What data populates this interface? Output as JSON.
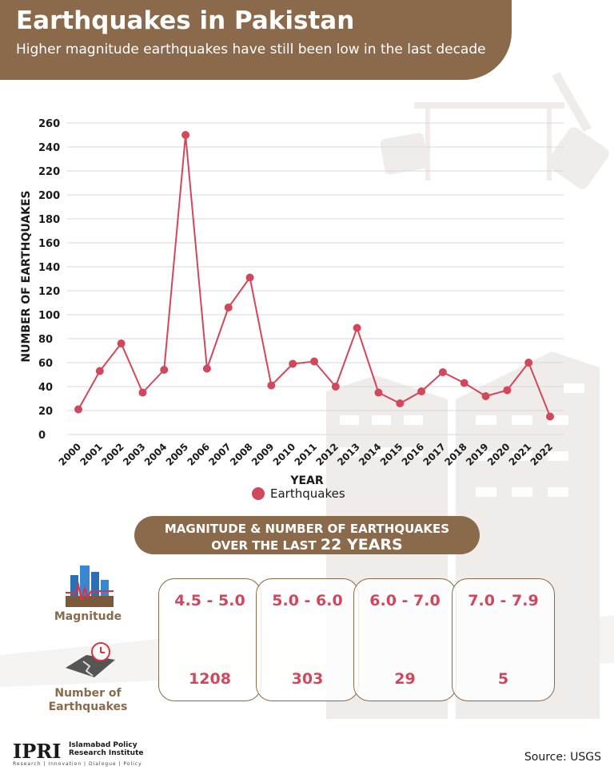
{
  "header": {
    "title": "Earthquakes in Pakistan",
    "subtitle": "Higher magnitude earthquakes have still been low in the last decade"
  },
  "colors": {
    "accent": "#8a6a4a",
    "series": "#d3475c",
    "grid": "#d9d9d9"
  },
  "chart_data": {
    "type": "line",
    "xlabel": "YEAR",
    "ylabel": "NUMBER OF EARTHQUAKES",
    "ylim": [
      0,
      260
    ],
    "yticks": [
      0,
      20,
      40,
      60,
      80,
      100,
      120,
      140,
      160,
      180,
      200,
      220,
      240,
      260
    ],
    "grid": true,
    "legend_position": "bottom",
    "categories": [
      "2000",
      "2001",
      "2002",
      "2003",
      "2004",
      "2005",
      "2006",
      "2007",
      "2008",
      "2009",
      "2010",
      "2011",
      "2012",
      "2013",
      "2014",
      "2015",
      "2016",
      "2017",
      "2018",
      "2019",
      "2020",
      "2021",
      "2022"
    ],
    "series": [
      {
        "name": "Earthquakes",
        "values": [
          21,
          53,
          76,
          35,
          54,
          250,
          55,
          106,
          131,
          41,
          59,
          61,
          40,
          89,
          35,
          26,
          36,
          52,
          43,
          32,
          37,
          60,
          15
        ]
      }
    ]
  },
  "summary": {
    "title_line1": "MAGNITUDE & NUMBER OF EARTHQUAKES",
    "title_line2_prefix": "OVER THE LAST ",
    "title_line2_big": "22 YEARS",
    "magnitude_label": "Magnitude",
    "count_label_line1": "Number of",
    "count_label_line2": "Earthquakes",
    "magnitude_icon": "city-seismograph-icon",
    "count_icon": "cracked-road-icon",
    "cards": [
      {
        "range": "4.5 - 5.0",
        "count": "1208"
      },
      {
        "range": "5.0 - 6.0",
        "count": "303"
      },
      {
        "range": "6.0 - 7.0",
        "count": "29"
      },
      {
        "range": "7.0 - 7.9",
        "count": "5"
      }
    ]
  },
  "footer": {
    "logo": "IPRI",
    "org_line1": "Islamabad Policy",
    "org_line2": "Research Institute",
    "tagline": "Research | Innovation | Dialogue | Policy",
    "source": "Source: USGS"
  }
}
